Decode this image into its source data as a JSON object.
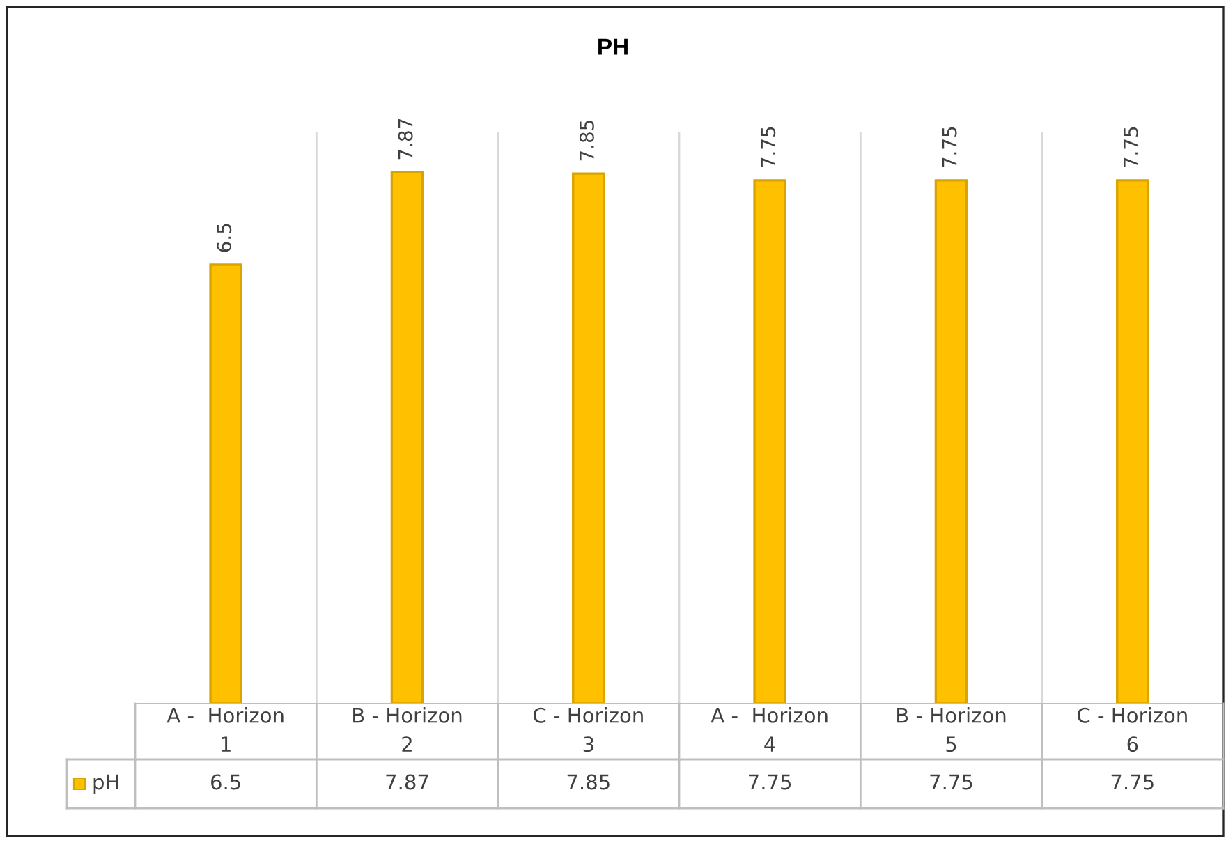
{
  "chart_data": {
    "type": "bar",
    "title": "PH",
    "categories": [
      "A -  Horizon\n1",
      "B - Horizon\n2",
      "C - Horizon\n3",
      "A -  Horizon\n4",
      "B - Horizon\n5",
      "C - Horizon\n6"
    ],
    "series": [
      {
        "name": "pH",
        "color": "#ffc000",
        "values": [
          6.5,
          7.87,
          7.85,
          7.75,
          7.75,
          7.75
        ]
      }
    ],
    "annotations": [
      {
        "text": "6.5",
        "x": "A -  Horizon\n1",
        "y": 6.5
      },
      {
        "text": "7.87",
        "x": "B - Horizon\n2",
        "y": 7.87
      },
      {
        "text": "7.85",
        "x": "C - Horizon\n3",
        "y": 7.85
      },
      {
        "text": "7.75",
        "x": "A -  Horizon\n4",
        "y": 7.75
      },
      {
        "text": "7.75",
        "x": "B - Horizon\n5",
        "y": 7.75
      },
      {
        "text": "7.75",
        "x": "C - Horizon\n6",
        "y": 7.75
      }
    ],
    "data_labels": true,
    "legend": "bottom"
  }
}
